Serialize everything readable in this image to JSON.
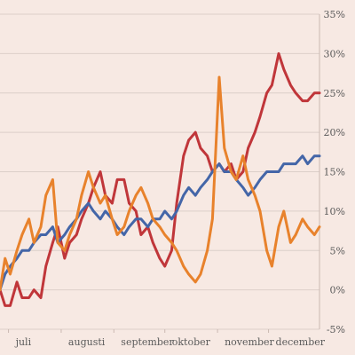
{
  "chart_data": {
    "type": "line",
    "title": "",
    "xlabel": "",
    "ylabel": "",
    "ylim": [
      -5,
      35
    ],
    "y_ticks": [
      -5,
      0,
      5,
      10,
      15,
      20,
      25,
      30,
      35
    ],
    "y_tick_labels": [
      "-5%",
      "0%",
      "5%",
      "10%",
      "15%",
      "20%",
      "25%",
      "30%",
      "35%"
    ],
    "x_ticks": [
      "2020-07-01",
      "2020-08-01",
      "2020-09-01",
      "2020-10-01",
      "2020-11-01",
      "2020-12-01"
    ],
    "x_tick_labels": [
      "juli",
      "augusti",
      "september",
      "oktober",
      "november",
      "december"
    ],
    "xlim": [
      "2020-06-26",
      "2020-12-31"
    ],
    "grid": true,
    "series": [
      {
        "color": "#c0363a",
        "x": [
          "2020-06-26",
          "2020-06-29",
          "2020-07-02",
          "2020-07-06",
          "2020-07-09",
          "2020-07-13",
          "2020-07-16",
          "2020-07-20",
          "2020-07-23",
          "2020-07-27",
          "2020-07-30",
          "2020-08-03",
          "2020-08-06",
          "2020-08-10",
          "2020-08-13",
          "2020-08-17",
          "2020-08-20",
          "2020-08-24",
          "2020-08-27",
          "2020-08-31",
          "2020-09-03",
          "2020-09-07",
          "2020-09-10",
          "2020-09-14",
          "2020-09-17",
          "2020-09-21",
          "2020-09-24",
          "2020-09-28",
          "2020-10-01",
          "2020-10-05",
          "2020-10-08",
          "2020-10-12",
          "2020-10-15",
          "2020-10-19",
          "2020-10-22",
          "2020-10-26",
          "2020-10-29",
          "2020-11-02",
          "2020-11-05",
          "2020-11-09",
          "2020-11-12",
          "2020-11-16",
          "2020-11-19",
          "2020-11-23",
          "2020-11-26",
          "2020-11-30",
          "2020-12-03",
          "2020-12-07",
          "2020-12-10",
          "2020-12-14",
          "2020-12-17",
          "2020-12-21",
          "2020-12-24",
          "2020-12-28",
          "2020-12-31"
        ],
        "y": [
          0,
          -2,
          -2,
          1,
          -1,
          -1,
          0,
          -1,
          3,
          6,
          8,
          4,
          6,
          7,
          9,
          11,
          13,
          15,
          12,
          11,
          14,
          14,
          11,
          10,
          7,
          8,
          6,
          4,
          3,
          5,
          11,
          17,
          19,
          20,
          18,
          17,
          15,
          16,
          15,
          16,
          14,
          15,
          18,
          20,
          22,
          25,
          26,
          30,
          28,
          26,
          25,
          24,
          24,
          25,
          25
        ]
      },
      {
        "color": "#4466a8",
        "x": [
          "2020-06-26",
          "2020-06-29",
          "2020-07-02",
          "2020-07-06",
          "2020-07-09",
          "2020-07-13",
          "2020-07-16",
          "2020-07-20",
          "2020-07-23",
          "2020-07-27",
          "2020-07-30",
          "2020-08-03",
          "2020-08-06",
          "2020-08-10",
          "2020-08-13",
          "2020-08-17",
          "2020-08-20",
          "2020-08-24",
          "2020-08-27",
          "2020-08-31",
          "2020-09-03",
          "2020-09-07",
          "2020-09-10",
          "2020-09-14",
          "2020-09-17",
          "2020-09-21",
          "2020-09-24",
          "2020-09-28",
          "2020-10-01",
          "2020-10-05",
          "2020-10-08",
          "2020-10-12",
          "2020-10-15",
          "2020-10-19",
          "2020-10-22",
          "2020-10-26",
          "2020-10-29",
          "2020-11-02",
          "2020-11-05",
          "2020-11-09",
          "2020-11-12",
          "2020-11-16",
          "2020-11-19",
          "2020-11-23",
          "2020-11-26",
          "2020-11-30",
          "2020-12-03",
          "2020-12-07",
          "2020-12-10",
          "2020-12-14",
          "2020-12-17",
          "2020-12-21",
          "2020-12-24",
          "2020-12-28",
          "2020-12-31"
        ],
        "y": [
          0,
          2,
          3,
          4,
          5,
          5,
          6,
          7,
          7,
          8,
          6,
          7,
          8,
          9,
          10,
          11,
          10,
          9,
          10,
          9,
          8,
          7,
          8,
          9,
          9,
          8,
          9,
          9,
          10,
          9,
          10,
          12,
          13,
          12,
          13,
          14,
          15,
          16,
          15,
          15,
          14,
          13,
          12,
          13,
          14,
          15,
          15,
          15,
          16,
          16,
          16,
          17,
          16,
          17,
          17
        ]
      },
      {
        "color": "#e8822c",
        "x": [
          "2020-06-26",
          "2020-06-29",
          "2020-07-02",
          "2020-07-06",
          "2020-07-09",
          "2020-07-13",
          "2020-07-16",
          "2020-07-20",
          "2020-07-23",
          "2020-07-27",
          "2020-07-30",
          "2020-08-03",
          "2020-08-06",
          "2020-08-10",
          "2020-08-13",
          "2020-08-17",
          "2020-08-20",
          "2020-08-24",
          "2020-08-27",
          "2020-08-31",
          "2020-09-03",
          "2020-09-07",
          "2020-09-10",
          "2020-09-14",
          "2020-09-17",
          "2020-09-21",
          "2020-09-24",
          "2020-09-28",
          "2020-10-01",
          "2020-10-05",
          "2020-10-08",
          "2020-10-12",
          "2020-10-15",
          "2020-10-19",
          "2020-10-22",
          "2020-10-26",
          "2020-10-29",
          "2020-11-02",
          "2020-11-05",
          "2020-11-09",
          "2020-11-12",
          "2020-11-16",
          "2020-11-19",
          "2020-11-23",
          "2020-11-26",
          "2020-11-30",
          "2020-12-03",
          "2020-12-07",
          "2020-12-10",
          "2020-12-14",
          "2020-12-17",
          "2020-12-21",
          "2020-12-24",
          "2020-12-28",
          "2020-12-31"
        ],
        "y": [
          0,
          4,
          2,
          5,
          7,
          9,
          6,
          8,
          12,
          14,
          6,
          5,
          7,
          9,
          12,
          15,
          13,
          11,
          12,
          9,
          7,
          8,
          10,
          12,
          13,
          11,
          9,
          8,
          7,
          6,
          5,
          3,
          2,
          1,
          2,
          5,
          9,
          27,
          18,
          15,
          14,
          17,
          14,
          12,
          10,
          5,
          3,
          8,
          10,
          6,
          7,
          9,
          8,
          7,
          8
        ]
      }
    ]
  }
}
